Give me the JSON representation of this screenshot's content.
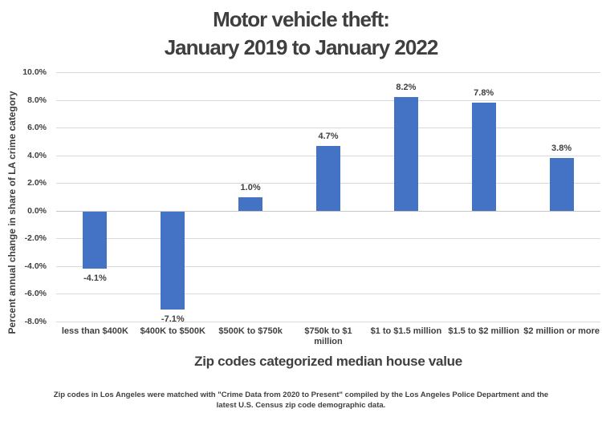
{
  "page": {
    "title_line1": "Motor vehicle theft:",
    "title_line2": "January 2019 to January 2022"
  },
  "chart_data": {
    "type": "bar",
    "title": "Motor vehicle theft: January 2019 to January 2022",
    "categories": [
      "less than $400K",
      "$400K to $500K",
      "$500K to $750k",
      "$750k to $1 million",
      "$1 to $1.5 million",
      "$1.5 to $2 million",
      "$2 million or more"
    ],
    "category_display_lines": [
      [
        "less than $400K"
      ],
      [
        "$400K to $500K"
      ],
      [
        "$500K to $750k"
      ],
      [
        "$750k to $1",
        "million"
      ],
      [
        "$1 to $1.5 million"
      ],
      [
        "$1.5 to $2 million"
      ],
      [
        "$2 million or more"
      ]
    ],
    "values": [
      -4.1,
      -7.1,
      1.0,
      4.7,
      8.2,
      7.8,
      3.8
    ],
    "value_labels": [
      "-4.1%",
      "-7.1%",
      "1.0%",
      "4.7%",
      "8.2%",
      "7.8%",
      "3.8%"
    ],
    "xlabel": "Zip codes categorized median house value",
    "ylabel": "Percent annual change in share of LA crime category",
    "ylim": [
      -8,
      10
    ],
    "ytick_step": 2,
    "ytick_labels": [
      "10.0%",
      "8.0%",
      "6.0%",
      "4.0%",
      "2.0%",
      "0.0%",
      "-2.0%",
      "-4.0%",
      "-6.0%",
      "-8.0%"
    ],
    "grid": true,
    "legend_position": "none",
    "colors": {
      "bar": "#4472C4",
      "gridline": "#D9D9D9",
      "zero_line": "#C6C6C6",
      "text": "#3F3F3F"
    }
  },
  "footnote": {
    "line1": "Zip codes in Los Angeles were matched with \"Crime Data from 2020 to Present\" compiled by the Los Angeles Police Department and the",
    "line2": "latest U.S. Census zip code demographic data."
  }
}
